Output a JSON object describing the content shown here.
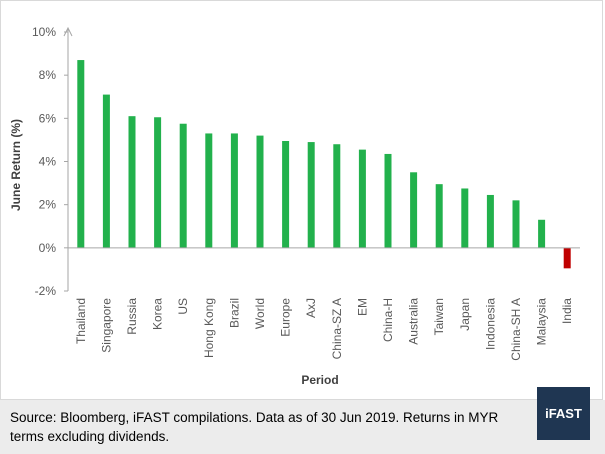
{
  "chart_data": {
    "type": "bar",
    "title": "",
    "xlabel": "Period",
    "ylabel": "June Return (%)",
    "ylim": [
      -2,
      10
    ],
    "yticks": [
      -2,
      0,
      2,
      4,
      6,
      8,
      10
    ],
    "ytick_suffix": "%",
    "grid": false,
    "legend": "none",
    "categories": [
      "Thailand",
      "Singapore",
      "Russia",
      "Korea",
      "US",
      "Hong Kong",
      "Brazil",
      "World",
      "Europe",
      "AxJ",
      "China-SZ A",
      "EM",
      "China-H",
      "Australia",
      "Taiwan",
      "Japan",
      "Indonesia",
      "China-SH A",
      "Malaysia",
      "India"
    ],
    "values": [
      8.7,
      7.1,
      6.1,
      6.05,
      5.75,
      5.3,
      5.3,
      5.2,
      4.95,
      4.9,
      4.8,
      4.55,
      4.35,
      3.5,
      2.95,
      2.75,
      2.45,
      2.2,
      1.3,
      -0.95
    ],
    "colors": {
      "positive": "#22b14c",
      "negative": "#c00000",
      "axis": "#a6a6a6"
    }
  },
  "footer": {
    "note": "Source: Bloomberg, iFAST compilations. Data as of 30 Jun 2019. Returns in MYR terms excluding dividends.",
    "logo_text": "iFAST"
  }
}
